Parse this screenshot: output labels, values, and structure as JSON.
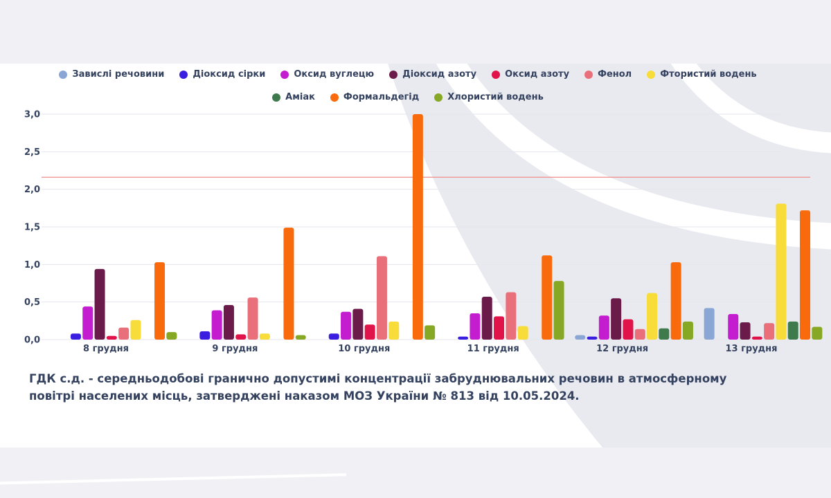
{
  "chart_data": {
    "type": "bar",
    "title": "",
    "xlabel": "",
    "ylabel": "",
    "ylim": [
      0,
      3.0
    ],
    "yticks": [
      "0,0",
      "0,5",
      "1,0",
      "1,5",
      "2,0",
      "2,5",
      "3,0"
    ],
    "ytick_values": [
      0,
      0.5,
      1.0,
      1.5,
      2.0,
      2.5,
      3.0
    ],
    "grid": true,
    "legend_position": "top",
    "reference_line": {
      "value": 2.16,
      "color": "#f08c8c"
    },
    "categories": [
      "8 грудня",
      "9 грудня",
      "10 грудня",
      "11 грудня",
      "12 грудня",
      "13 грудня"
    ],
    "series": [
      {
        "name": "Завислі речовини",
        "color": "#8aa6d4",
        "values": [
          0,
          0,
          0,
          0,
          0.06,
          0.42
        ]
      },
      {
        "name": "Діоксид сірки",
        "color": "#3a1fe0",
        "values": [
          0.08,
          0.11,
          0.08,
          0.04,
          0.04,
          0
        ]
      },
      {
        "name": "Оксид вуглецю",
        "color": "#c41ccf",
        "values": [
          0.44,
          0.39,
          0.37,
          0.35,
          0.32,
          0.34
        ]
      },
      {
        "name": "Діоксид азоту",
        "color": "#6b1b4a",
        "values": [
          0.94,
          0.46,
          0.41,
          0.57,
          0.55,
          0.23
        ]
      },
      {
        "name": "Оксид азоту",
        "color": "#e0144a",
        "values": [
          0.05,
          0.07,
          0.2,
          0.31,
          0.27,
          0.04
        ]
      },
      {
        "name": "Фенол",
        "color": "#e9707a",
        "values": [
          0.16,
          0.56,
          1.11,
          0.63,
          0.14,
          0.22
        ]
      },
      {
        "name": "Фтористий водень",
        "color": "#f7dc3a",
        "values": [
          0.26,
          0.08,
          0.24,
          0.18,
          0.62,
          1.81
        ]
      },
      {
        "name": "Аміак",
        "color": "#3f7a4c",
        "values": [
          0,
          0,
          0,
          0,
          0.15,
          0.24
        ]
      },
      {
        "name": "Формальдегід",
        "color": "#f86a0c",
        "values": [
          1.03,
          1.49,
          3.0,
          1.12,
          1.03,
          1.72
        ]
      },
      {
        "name": "Хлористий водень",
        "color": "#86a824",
        "values": [
          0.1,
          0.06,
          0.19,
          0.78,
          0.24,
          0.17
        ]
      }
    ]
  },
  "legend": {
    "row1": [
      0,
      1,
      2,
      3,
      4,
      5,
      6
    ],
    "row2": [
      7,
      8,
      9
    ]
  },
  "note": {
    "line1": "ГДК с.д. - середньодобові гранично допустимі концентрації забруднювальних речовин в атмосферному",
    "line2": "повітрі населених місць, затверджені наказом МОЗ України № 813 від 10.05.2024."
  },
  "colors": {
    "text": "#34425f",
    "background_band": "#f1f1f5",
    "grid": "#e4e6ee"
  }
}
